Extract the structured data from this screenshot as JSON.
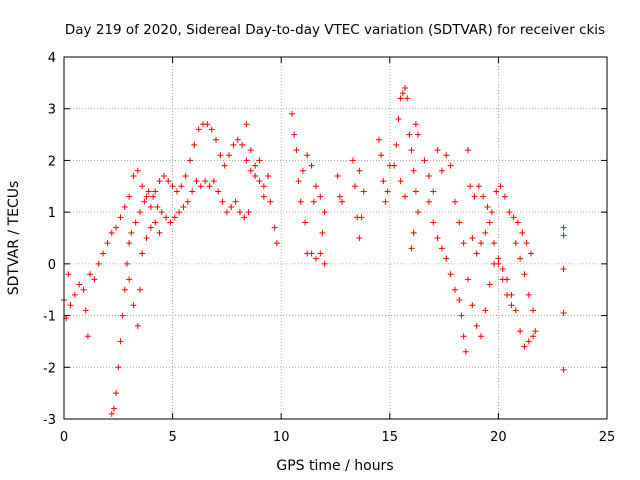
{
  "chart_data": {
    "type": "scatter",
    "title": "Day 219 of 2020, Sidereal Day-to-day VTEC variation (SDTVAR) for receiver ckis",
    "xlabel": "GPS time / hours",
    "ylabel": "SDTVAR / TECUs",
    "xlim": [
      0,
      25
    ],
    "ylim": [
      -3,
      4
    ],
    "xticks": [
      "0",
      "5",
      "10",
      "15",
      "20",
      "25"
    ],
    "yticks": [
      "-3",
      "-2",
      "-1",
      "0",
      "1",
      "2",
      "3",
      "4"
    ],
    "grid": true,
    "marker": "+",
    "series_color": "#ff0000",
    "series": [
      {
        "name": "SDTVAR",
        "points": [
          [
            0.0,
            -0.7
          ],
          [
            0.1,
            -1.05
          ],
          [
            0.2,
            -0.2
          ],
          [
            0.3,
            -0.8
          ],
          [
            0.5,
            -0.6
          ],
          [
            0.7,
            -0.4
          ],
          [
            0.9,
            -0.5
          ],
          [
            1.0,
            -0.9
          ],
          [
            1.1,
            -1.4
          ],
          [
            1.2,
            -0.2
          ],
          [
            1.4,
            -0.3
          ],
          [
            1.6,
            0.0
          ],
          [
            1.8,
            0.2
          ],
          [
            2.0,
            0.4
          ],
          [
            2.2,
            0.6
          ],
          [
            2.4,
            0.7
          ],
          [
            2.6,
            0.9
          ],
          [
            2.8,
            1.1
          ],
          [
            3.0,
            1.3
          ],
          [
            3.2,
            1.7
          ],
          [
            3.4,
            1.8
          ],
          [
            3.6,
            1.5
          ],
          [
            3.8,
            1.3
          ],
          [
            4.0,
            1.1
          ],
          [
            4.2,
            1.4
          ],
          [
            4.4,
            1.6
          ],
          [
            4.6,
            1.7
          ],
          [
            4.8,
            1.6
          ],
          [
            5.0,
            1.5
          ],
          [
            5.2,
            1.4
          ],
          [
            5.4,
            1.5
          ],
          [
            5.6,
            1.7
          ],
          [
            5.8,
            2.0
          ],
          [
            6.0,
            2.3
          ],
          [
            6.2,
            2.6
          ],
          [
            6.4,
            2.7
          ],
          [
            6.6,
            2.7
          ],
          [
            6.8,
            2.6
          ],
          [
            7.0,
            2.4
          ],
          [
            7.2,
            2.1
          ],
          [
            7.4,
            1.9
          ],
          [
            7.6,
            2.1
          ],
          [
            7.8,
            2.3
          ],
          [
            8.0,
            2.4
          ],
          [
            8.2,
            2.3
          ],
          [
            8.4,
            2.0
          ],
          [
            8.6,
            1.8
          ],
          [
            8.8,
            1.9
          ],
          [
            9.0,
            1.6
          ],
          [
            9.2,
            1.3
          ],
          [
            2.2,
            -2.9
          ],
          [
            2.3,
            -2.8
          ],
          [
            2.4,
            -2.5
          ],
          [
            2.5,
            -2.0
          ],
          [
            2.6,
            -1.5
          ],
          [
            2.7,
            -1.0
          ],
          [
            2.8,
            -0.5
          ],
          [
            2.9,
            0.0
          ],
          [
            3.0,
            0.4
          ],
          [
            3.1,
            0.6
          ],
          [
            3.3,
            0.8
          ],
          [
            3.5,
            1.0
          ],
          [
            3.7,
            1.2
          ],
          [
            3.9,
            1.4
          ],
          [
            4.1,
            1.3
          ],
          [
            4.3,
            1.1
          ],
          [
            4.5,
            1.0
          ],
          [
            4.7,
            0.9
          ],
          [
            4.9,
            0.8
          ],
          [
            5.1,
            0.9
          ],
          [
            5.3,
            1.0
          ],
          [
            5.5,
            1.1
          ],
          [
            5.7,
            1.2
          ],
          [
            5.9,
            1.4
          ],
          [
            6.1,
            1.6
          ],
          [
            6.3,
            1.5
          ],
          [
            6.5,
            1.6
          ],
          [
            6.7,
            1.5
          ],
          [
            6.9,
            1.6
          ],
          [
            7.1,
            1.4
          ],
          [
            7.3,
            1.2
          ],
          [
            7.5,
            1.0
          ],
          [
            7.7,
            1.1
          ],
          [
            7.9,
            1.2
          ],
          [
            8.1,
            1.0
          ],
          [
            8.3,
            0.9
          ],
          [
            8.5,
            1.0
          ],
          [
            3.0,
            -0.3
          ],
          [
            3.2,
            -0.8
          ],
          [
            3.4,
            -1.2
          ],
          [
            3.5,
            -0.5
          ],
          [
            3.6,
            0.2
          ],
          [
            3.8,
            0.5
          ],
          [
            4.0,
            0.7
          ],
          [
            4.2,
            0.8
          ],
          [
            4.4,
            0.6
          ],
          [
            8.4,
            2.7
          ],
          [
            8.6,
            2.2
          ],
          [
            8.8,
            1.7
          ],
          [
            9.0,
            2.0
          ],
          [
            9.2,
            1.5
          ],
          [
            9.4,
            1.7
          ],
          [
            9.5,
            1.2
          ],
          [
            9.7,
            0.7
          ],
          [
            9.8,
            0.4
          ],
          [
            10.5,
            2.9
          ],
          [
            10.6,
            2.5
          ],
          [
            10.7,
            2.2
          ],
          [
            10.8,
            1.6
          ],
          [
            10.9,
            1.2
          ],
          [
            11.0,
            1.8
          ],
          [
            11.2,
            2.1
          ],
          [
            11.4,
            1.9
          ],
          [
            11.6,
            1.5
          ],
          [
            11.8,
            1.3
          ],
          [
            12.0,
            1.0
          ],
          [
            11.2,
            0.2
          ],
          [
            11.4,
            0.2
          ],
          [
            11.6,
            0.1
          ],
          [
            11.8,
            0.2
          ],
          [
            12.0,
            0.0
          ],
          [
            11.1,
            0.8
          ],
          [
            11.5,
            1.2
          ],
          [
            11.9,
            0.6
          ],
          [
            12.6,
            1.7
          ],
          [
            12.7,
            1.3
          ],
          [
            12.8,
            1.2
          ],
          [
            13.3,
            2.0
          ],
          [
            13.4,
            1.5
          ],
          [
            13.5,
            0.9
          ],
          [
            13.6,
            0.5
          ],
          [
            13.7,
            0.9
          ],
          [
            13.8,
            1.4
          ],
          [
            13.6,
            1.8
          ],
          [
            14.5,
            2.4
          ],
          [
            14.6,
            2.1
          ],
          [
            14.7,
            1.6
          ],
          [
            14.8,
            1.2
          ],
          [
            14.9,
            1.4
          ],
          [
            15.0,
            1.9
          ],
          [
            15.2,
            1.9
          ],
          [
            15.3,
            2.3
          ],
          [
            15.4,
            2.8
          ],
          [
            15.5,
            3.2
          ],
          [
            15.6,
            3.3
          ],
          [
            15.7,
            3.4
          ],
          [
            15.8,
            3.2
          ],
          [
            15.9,
            2.5
          ],
          [
            16.0,
            2.2
          ],
          [
            16.1,
            1.8
          ],
          [
            16.2,
            1.4
          ],
          [
            16.3,
            1.0
          ],
          [
            16.2,
            2.7
          ],
          [
            16.3,
            2.5
          ],
          [
            15.5,
            1.6
          ],
          [
            15.7,
            1.3
          ],
          [
            16.0,
            0.3
          ],
          [
            16.1,
            0.6
          ],
          [
            16.6,
            2.0
          ],
          [
            16.8,
            1.7
          ],
          [
            17.0,
            1.4
          ],
          [
            17.2,
            2.2
          ],
          [
            17.4,
            1.8
          ],
          [
            17.6,
            2.1
          ],
          [
            17.8,
            1.9
          ],
          [
            18.0,
            1.2
          ],
          [
            18.2,
            0.8
          ],
          [
            18.4,
            0.4
          ],
          [
            18.6,
            -0.3
          ],
          [
            18.8,
            -0.8
          ],
          [
            19.0,
            -1.2
          ],
          [
            19.2,
            -1.4
          ],
          [
            19.4,
            -0.9
          ],
          [
            19.6,
            -0.4
          ],
          [
            19.8,
            0.0
          ],
          [
            20.0,
            0.1
          ],
          [
            20.2,
            -0.1
          ],
          [
            20.4,
            -0.3
          ],
          [
            20.6,
            -0.6
          ],
          [
            20.8,
            -0.9
          ],
          [
            21.0,
            -1.3
          ],
          [
            21.2,
            -1.6
          ],
          [
            21.4,
            -1.5
          ],
          [
            21.6,
            -1.4
          ],
          [
            16.8,
            1.2
          ],
          [
            17.0,
            0.8
          ],
          [
            17.2,
            0.5
          ],
          [
            17.4,
            0.3
          ],
          [
            17.6,
            0.1
          ],
          [
            17.8,
            -0.2
          ],
          [
            18.0,
            -0.5
          ],
          [
            18.2,
            -0.7
          ],
          [
            18.3,
            -1.0
          ],
          [
            18.4,
            -1.4
          ],
          [
            18.5,
            -1.7
          ],
          [
            18.6,
            2.2
          ],
          [
            18.7,
            1.5
          ],
          [
            18.9,
            1.3
          ],
          [
            19.1,
            1.5
          ],
          [
            19.3,
            1.3
          ],
          [
            19.5,
            1.1
          ],
          [
            19.7,
            1.0
          ],
          [
            19.9,
            1.4
          ],
          [
            20.1,
            1.5
          ],
          [
            20.3,
            1.3
          ],
          [
            20.5,
            1.0
          ],
          [
            20.7,
            0.9
          ],
          [
            20.9,
            0.8
          ],
          [
            21.1,
            0.6
          ],
          [
            21.3,
            0.4
          ],
          [
            21.5,
            0.2
          ],
          [
            18.8,
            0.5
          ],
          [
            19.0,
            0.2
          ],
          [
            19.2,
            0.4
          ],
          [
            19.4,
            0.6
          ],
          [
            19.6,
            0.8
          ],
          [
            19.8,
            0.4
          ],
          [
            20.0,
            0.0
          ],
          [
            20.2,
            -0.3
          ],
          [
            20.4,
            -0.6
          ],
          [
            20.6,
            -0.8
          ],
          [
            20.8,
            0.4
          ],
          [
            21.0,
            0.1
          ],
          [
            21.2,
            -0.2
          ],
          [
            21.4,
            -0.6
          ],
          [
            21.6,
            -0.9
          ],
          [
            21.7,
            -1.3
          ],
          [
            23.0,
            0.7
          ],
          [
            23.0,
            0.55
          ],
          [
            23.0,
            -0.1
          ],
          [
            23.0,
            -0.95
          ],
          [
            23.0,
            -2.05
          ]
        ]
      }
    ]
  }
}
